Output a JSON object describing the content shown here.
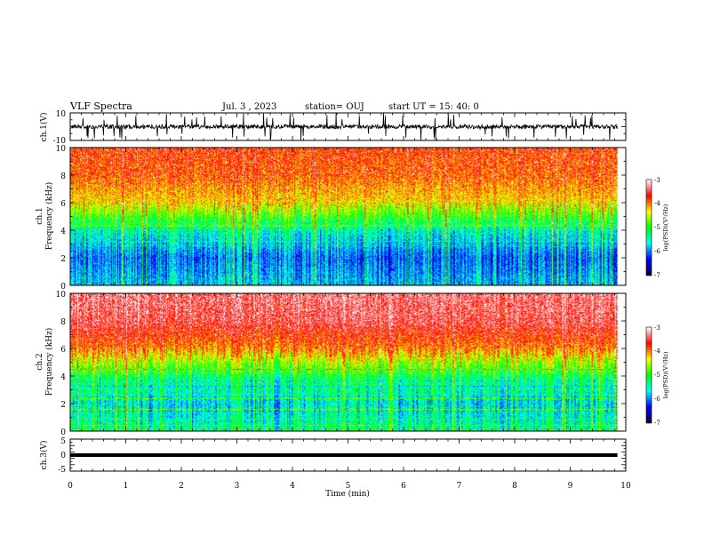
{
  "header": {
    "title": "VLF Spectra",
    "date": "Jul. 3 , 2023",
    "station": "station= OUJ",
    "start": "start UT = 15: 40: 0"
  },
  "chart_data": [
    {
      "type": "line",
      "panel": "ch1-waveform",
      "ylabel": "ch.1(V)",
      "ylim": [
        -10,
        10
      ],
      "ytick_labels": [
        "10",
        "-10"
      ],
      "xlim": [
        0,
        10
      ],
      "baseline": 0,
      "description_color": "#000000"
    },
    {
      "type": "heatmap",
      "panel": "ch1-spectrogram",
      "ylabel": "ch.1 Frequency (kHz)",
      "ylabel_lines": [
        "ch.1",
        "Frequency (kHz)"
      ],
      "ylim": [
        0,
        10
      ],
      "ytick_labels": [
        "10",
        "8",
        "6",
        "4",
        "2",
        "0"
      ],
      "xlim": [
        0,
        10
      ],
      "data_extent_min": 9.85,
      "colorbar": {
        "range": [
          -7,
          -3
        ],
        "tick_labels": [
          "-3",
          "-4",
          "-5",
          "-6",
          "-7"
        ],
        "label": "log(PSD)(V²/Hz)"
      },
      "profile_kHz": [
        0,
        2,
        4,
        5,
        6,
        8,
        10
      ],
      "profile_log_psd": [
        -5.8,
        -6.1,
        -5.5,
        -4.9,
        -4.3,
        -3.9,
        -3.8
      ]
    },
    {
      "type": "heatmap",
      "panel": "ch2-spectrogram",
      "ylabel": "ch.2 Frequency (kHz)",
      "ylabel_lines": [
        "ch.2",
        "Frequency (kHz)"
      ],
      "ylim": [
        0,
        10
      ],
      "ytick_labels": [
        "10",
        "8",
        "6",
        "4",
        "2",
        "0"
      ],
      "xlim": [
        0,
        10
      ],
      "data_extent_min": 9.85,
      "colorbar": {
        "range": [
          -7,
          -3
        ],
        "tick_labels": [
          "-3",
          "-4",
          "-5",
          "-6",
          "-7"
        ],
        "label": "log(PSD)(V²/Hz)"
      },
      "profile_kHz": [
        0,
        2,
        4,
        5,
        6,
        8,
        10
      ],
      "profile_log_psd": [
        -5.4,
        -5.7,
        -5.2,
        -4.6,
        -4.0,
        -3.5,
        -3.4
      ]
    },
    {
      "type": "line",
      "panel": "ch3-waveform",
      "ylabel": "ch.3(V)",
      "ylim": [
        -5,
        5
      ],
      "ytick_labels": [
        "5",
        "0",
        "-5"
      ],
      "xlim": [
        0,
        10
      ],
      "series": [
        {
          "x": [
            0,
            9.85
          ],
          "y": [
            0,
            0
          ]
        }
      ]
    }
  ],
  "xaxis": {
    "label": "Time (min)",
    "tick_labels": [
      "0",
      "1",
      "2",
      "3",
      "4",
      "5",
      "6",
      "7",
      "8",
      "9",
      "10"
    ]
  },
  "colors": {
    "colormap": [
      "#000033",
      "#0000ff",
      "#00ffff",
      "#00ff00",
      "#ffff00",
      "#ff0000",
      "#ffffff"
    ]
  }
}
